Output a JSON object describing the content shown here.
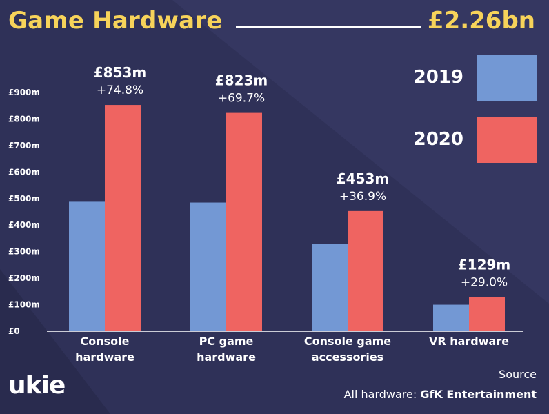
{
  "header": {
    "title": "Game Hardware",
    "total": "£2.26bn"
  },
  "colors": {
    "background": "#2f3158",
    "title": "#f7d35a",
    "series_2019": "#7398d4",
    "series_2020": "#ef6461"
  },
  "chart_data": {
    "type": "bar",
    "title": "Game Hardware",
    "ylim": [
      0,
      900
    ],
    "yticks": [
      {
        "value": 0,
        "label": "£0"
      },
      {
        "value": 100,
        "label": "£100m"
      },
      {
        "value": 200,
        "label": "£200m"
      },
      {
        "value": 300,
        "label": "£300m"
      },
      {
        "value": 400,
        "label": "£400m"
      },
      {
        "value": 500,
        "label": "£500m"
      },
      {
        "value": 600,
        "label": "£600m"
      },
      {
        "value": 700,
        "label": "£700m"
      },
      {
        "value": 800,
        "label": "£800m"
      },
      {
        "value": 900,
        "label": "£900m"
      }
    ],
    "categories": [
      [
        "Console",
        "hardware"
      ],
      [
        "PC game",
        "hardware"
      ],
      [
        "Console game",
        "accessories"
      ],
      [
        "VR hardware"
      ]
    ],
    "series": [
      {
        "name": "2019",
        "color": "#7398d4",
        "values": [
          488,
          485,
          330,
          100
        ]
      },
      {
        "name": "2020",
        "color": "#ef6461",
        "values": [
          853,
          823,
          453,
          129
        ]
      }
    ],
    "value_labels": [
      "£853m",
      "£823m",
      "£453m",
      "£129m"
    ],
    "change_labels": [
      "+74.8%",
      "+69.7%",
      "+36.9%",
      "+29.0%"
    ],
    "legend": [
      {
        "label": "2019",
        "color": "#7398d4"
      },
      {
        "label": "2020",
        "color": "#ef6461"
      }
    ],
    "legend_position": "right"
  },
  "footer": {
    "brand": "ukie",
    "source_label": "Source",
    "source_prefix": "All hardware:",
    "source_org": "GfK Entertainment"
  }
}
